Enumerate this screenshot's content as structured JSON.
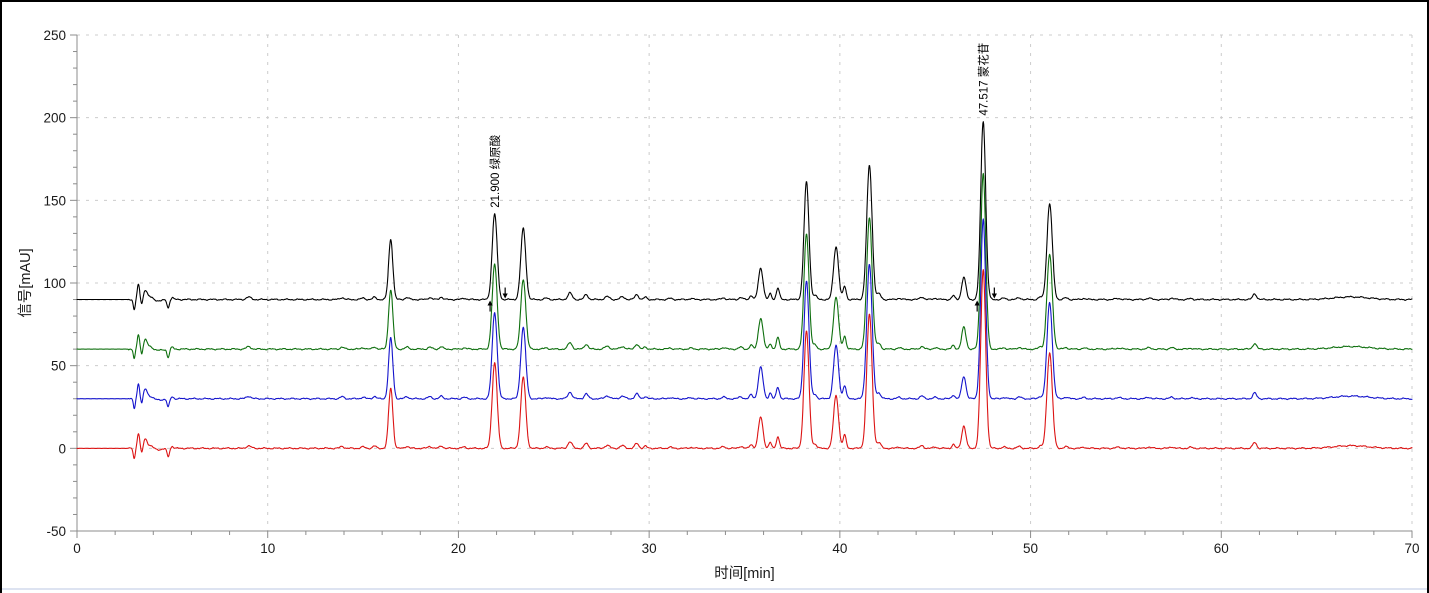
{
  "figure": {
    "background": "#ffffff",
    "border_color": "#000000",
    "bottom_edge_color": "#dde3f1",
    "axis_color": "#8c8c8c",
    "grid_color": "#cccccc",
    "tick_label_color": "#1a1a1a",
    "annotation_color": "#000000"
  },
  "chart_data": {
    "type": "line",
    "title": "",
    "xlabel": "时间[min]",
    "ylabel": "信号[mAU]",
    "xlim": [
      0,
      70
    ],
    "ylim": [
      -50,
      250
    ],
    "x_major_ticks": [
      0,
      10,
      20,
      30,
      40,
      50,
      60,
      70
    ],
    "x_minor_step": 2,
    "y_major_ticks": [
      -50,
      0,
      50,
      100,
      150,
      200,
      250
    ],
    "y_minor_step": 10,
    "grid": "dashed-major",
    "legend": "none",
    "series": [
      {
        "name": "trace-1-black",
        "color": "#000000",
        "baseline_offset_mau": 90,
        "scale": 1.0
      },
      {
        "name": "trace-2-green",
        "color": "#0e6f0e",
        "baseline_offset_mau": 60,
        "scale": 0.985
      },
      {
        "name": "trace-3-blue",
        "color": "#1414cc",
        "baseline_offset_mau": 30,
        "scale": 1.005
      },
      {
        "name": "trace-4-red",
        "color": "#dc1414",
        "baseline_offset_mau": 0,
        "scale": 1.0
      }
    ],
    "peaks_t_h_w": [
      [
        9.0,
        1.5,
        0.12
      ],
      [
        13.9,
        1.2,
        0.1
      ],
      [
        15.0,
        0.9,
        0.1
      ],
      [
        15.6,
        1.4,
        0.09
      ],
      [
        16.45,
        36.5,
        0.11
      ],
      [
        17.3,
        1.2,
        0.1
      ],
      [
        18.5,
        1.2,
        0.1
      ],
      [
        19.1,
        1.5,
        0.09
      ],
      [
        20.3,
        0.8,
        0.1
      ],
      [
        21.9,
        52,
        0.13
      ],
      [
        23.4,
        43,
        0.13
      ],
      [
        24.6,
        0.8,
        0.1
      ],
      [
        25.85,
        4,
        0.11
      ],
      [
        26.7,
        3,
        0.1
      ],
      [
        27.8,
        1.8,
        0.12
      ],
      [
        28.6,
        1.6,
        0.12
      ],
      [
        29.35,
        3,
        0.1
      ],
      [
        29.8,
        1.4,
        0.08
      ],
      [
        31.1,
        0.7,
        0.1
      ],
      [
        32.2,
        0.6,
        0.1
      ],
      [
        33.9,
        1.0,
        0.1
      ],
      [
        34.8,
        1.2,
        0.1
      ],
      [
        35.35,
        2.5,
        0.08
      ],
      [
        35.85,
        19,
        0.12
      ],
      [
        36.35,
        3.5,
        0.07
      ],
      [
        36.75,
        7,
        0.08
      ],
      [
        38.25,
        71,
        0.13
      ],
      [
        38.7,
        2.5,
        0.09
      ],
      [
        39.8,
        32,
        0.13
      ],
      [
        40.25,
        8,
        0.08
      ],
      [
        41.55,
        81,
        0.14
      ],
      [
        42.05,
        3.5,
        0.1
      ],
      [
        43.1,
        0.8,
        0.1
      ],
      [
        44.3,
        1.6,
        0.1
      ],
      [
        45.0,
        0.8,
        0.1
      ],
      [
        45.95,
        2.3,
        0.08
      ],
      [
        46.5,
        13.5,
        0.11
      ],
      [
        47.517,
        108,
        0.13
      ],
      [
        48.6,
        0.8,
        0.1
      ],
      [
        49.4,
        1.1,
        0.1
      ],
      [
        50.5,
        1.4,
        0.09
      ],
      [
        51.0,
        58,
        0.14
      ],
      [
        51.85,
        1.0,
        0.1
      ],
      [
        52.8,
        0.7,
        0.1
      ],
      [
        54.6,
        0.6,
        0.15
      ],
      [
        56.2,
        0.8,
        0.12
      ],
      [
        57.4,
        0.9,
        0.1
      ],
      [
        58.4,
        0.6,
        0.1
      ],
      [
        61.75,
        3.5,
        0.1
      ],
      [
        66.8,
        1.6,
        0.9
      ]
    ],
    "solvent_front_t_h_w": [
      [
        3.0,
        -6,
        0.05
      ],
      [
        3.22,
        9,
        0.06
      ],
      [
        3.4,
        -3.5,
        0.045
      ],
      [
        3.58,
        5,
        0.09
      ],
      [
        3.8,
        1.8,
        0.18
      ],
      [
        4.25,
        -0.8,
        0.25
      ],
      [
        4.78,
        -5,
        0.06
      ],
      [
        5.0,
        1.2,
        0.06
      ]
    ],
    "annotations": [
      {
        "t": 21.9,
        "rt": "21.900",
        "name": "绿原酸"
      },
      {
        "t": 47.517,
        "rt": "47.517",
        "name": "蒙花苷"
      }
    ],
    "integration_markers": [
      {
        "t": 21.66,
        "dir": "up"
      },
      {
        "t": 22.45,
        "dir": "down"
      },
      {
        "t": 47.2,
        "dir": "up"
      },
      {
        "t": 48.1,
        "dir": "down"
      }
    ]
  }
}
